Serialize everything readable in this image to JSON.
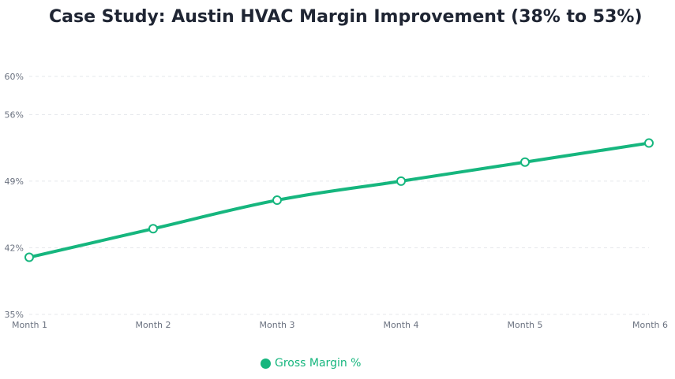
{
  "chart_data": {
    "type": "line",
    "title": "Case Study: Austin HVAC Margin Improvement (38% to 53%)",
    "xlabel": "",
    "ylabel": "",
    "categories": [
      "Month 1",
      "Month 2",
      "Month 3",
      "Month 4",
      "Month 5",
      "Month 6"
    ],
    "series": [
      {
        "name": "Gross Margin %",
        "values": [
          41,
          44,
          47,
          49,
          51,
          53
        ],
        "color": "#16b67e"
      }
    ],
    "ylim": [
      35,
      60
    ],
    "yticks": [
      35,
      42,
      49,
      56,
      60
    ],
    "ytick_labels": [
      "35%",
      "42%",
      "49%",
      "56%",
      "60%"
    ],
    "grid": true,
    "legend_position": "bottom"
  }
}
